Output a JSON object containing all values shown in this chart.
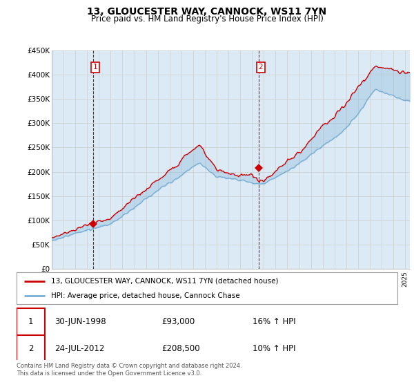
{
  "title": "13, GLOUCESTER WAY, CANNOCK, WS11 7YN",
  "subtitle": "Price paid vs. HM Land Registry's House Price Index (HPI)",
  "ylabel_ticks": [
    "£0",
    "£50K",
    "£100K",
    "£150K",
    "£200K",
    "£250K",
    "£300K",
    "£350K",
    "£400K",
    "£450K"
  ],
  "ylim": [
    0,
    450000
  ],
  "xlim_start": 1995.0,
  "xlim_end": 2025.4,
  "legend_line1": "13, GLOUCESTER WAY, CANNOCK, WS11 7YN (detached house)",
  "legend_line2": "HPI: Average price, detached house, Cannock Chase",
  "sale1_date": "30-JUN-1998",
  "sale1_price": "£93,000",
  "sale1_hpi": "16% ↑ HPI",
  "sale2_date": "24-JUL-2012",
  "sale2_price": "£208,500",
  "sale2_hpi": "10% ↑ HPI",
  "footer": "Contains HM Land Registry data © Crown copyright and database right 2024.\nThis data is licensed under the Open Government Licence v3.0.",
  "line_color_red": "#cc0000",
  "line_color_blue": "#7bafd4",
  "fill_color_blue": "#dceaf5",
  "sale1_x": 1998.5,
  "sale1_y": 93000,
  "sale2_x": 2012.55,
  "sale2_y": 208500,
  "background_color": "#ffffff",
  "grid_color": "#cccccc",
  "plot_bg_color": "#dceaf5"
}
